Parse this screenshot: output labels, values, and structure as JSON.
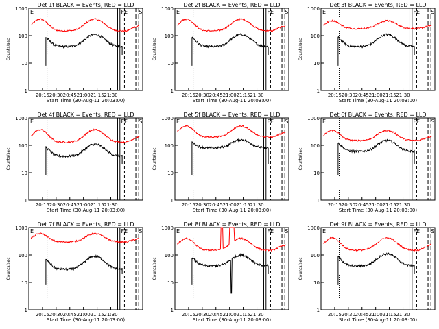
{
  "colors": {
    "events": "#000000",
    "lld": "#ff0000"
  },
  "axes": {
    "ylabel": "Counts/sec",
    "xlabel": "Start Time (30-Aug-11 20:03:00)",
    "xticks": [
      "20:15",
      "20:30",
      "20:45",
      "21:00",
      "21:15",
      "21:30"
    ],
    "yticks": [
      "1",
      "10",
      "100",
      "1000"
    ],
    "markers": [
      "E",
      "FE",
      "S"
    ]
  },
  "chart_data": [
    {
      "type": "line",
      "title": "Det 1f BLACK = Events, RED = LLD",
      "events_range": [
        40,
        110
      ],
      "lld_range": [
        150,
        400
      ],
      "lld_spikes": false,
      "events_dip": false
    },
    {
      "type": "line",
      "title": "Det 2f BLACK = Events, RED = LLD",
      "events_range": [
        40,
        110
      ],
      "lld_range": [
        150,
        400
      ],
      "lld_spikes": false,
      "events_dip": false
    },
    {
      "type": "line",
      "title": "Det 3f BLACK = Events, RED = LLD",
      "events_range": [
        40,
        110
      ],
      "lld_range": [
        180,
        350
      ],
      "lld_spikes": false,
      "events_dip": false
    },
    {
      "type": "line",
      "title": "Det 4f BLACK = Events, RED = LLD",
      "events_range": [
        40,
        110
      ],
      "lld_range": [
        130,
        370
      ],
      "lld_spikes": false,
      "events_dip": false
    },
    {
      "type": "line",
      "title": "Det 5f BLACK = Events, RED = LLD",
      "events_range": [
        80,
        160
      ],
      "lld_range": [
        200,
        500
      ],
      "lld_spikes": false,
      "events_dip": false
    },
    {
      "type": "line",
      "title": "Det 6f BLACK = Events, RED = LLD",
      "events_range": [
        60,
        150
      ],
      "lld_range": [
        150,
        350
      ],
      "lld_spikes": false,
      "events_dip": false
    },
    {
      "type": "line",
      "title": "Det 7f BLACK = Events, RED = LLD",
      "events_range": [
        30,
        90
      ],
      "lld_range": [
        300,
        600
      ],
      "lld_spikes": false,
      "events_dip": false
    },
    {
      "type": "line",
      "title": "Det 8f BLACK = Events, RED = LLD",
      "events_range": [
        40,
        100
      ],
      "lld_range": [
        150,
        400
      ],
      "lld_spikes": true,
      "events_dip": true
    },
    {
      "type": "line",
      "title": "Det 9f BLACK = Events, RED = LLD",
      "events_range": [
        40,
        110
      ],
      "lld_range": [
        150,
        420
      ],
      "lld_spikes": false,
      "events_dip": false
    }
  ]
}
